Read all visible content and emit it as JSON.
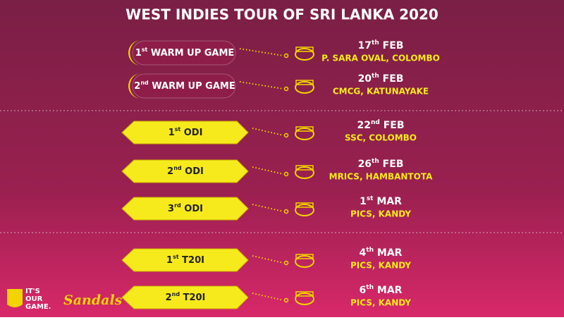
{
  "header": {
    "title": "WEST INDIES TOUR OF SRI LANKA 2020"
  },
  "sections": [
    {
      "matches": [
        {
          "label": {
            "num": "1",
            "sup": "st",
            "rest": " WARM UP GAME"
          },
          "date": {
            "day": "17",
            "sup": "th",
            "month": " FEB"
          },
          "venue": "P. SARA OVAL, COLOMBO"
        },
        {
          "label": {
            "num": "2",
            "sup": "nd",
            "rest": " WARM UP GAME"
          },
          "date": {
            "day": "20",
            "sup": "th",
            "month": " FEB"
          },
          "venue": "CMCG, KATUNAYAKE"
        }
      ]
    },
    {
      "matches": [
        {
          "label": {
            "num": "1",
            "sup": "st",
            "rest": " ODI"
          },
          "date": {
            "day": "22",
            "sup": "nd",
            "month": " FEB"
          },
          "venue": "SSC, COLOMBO"
        },
        {
          "label": {
            "num": "2",
            "sup": "nd",
            "rest": " ODI"
          },
          "date": {
            "day": "26",
            "sup": "th",
            "month": " FEB"
          },
          "venue": "MRICS, HAMBANTOTA"
        },
        {
          "label": {
            "num": "3",
            "sup": "rd",
            "rest": " ODI"
          },
          "date": {
            "day": "1",
            "sup": "st",
            "month": " MAR"
          },
          "venue": "PICS, KANDY"
        }
      ]
    },
    {
      "matches": [
        {
          "label": {
            "num": "1",
            "sup": "st",
            "rest": " T20I"
          },
          "date": {
            "day": "4",
            "sup": "th",
            "month": " MAR"
          },
          "venue": "PICS, KANDY"
        },
        {
          "label": {
            "num": "2",
            "sup": "nd",
            "rest": " T20I"
          },
          "date": {
            "day": "6",
            "sup": "th",
            "month": " MAR"
          },
          "venue": "PICS, KANDY"
        }
      ]
    }
  ],
  "footer": {
    "logo_lines": [
      "IT'S",
      "OUR",
      "GAME."
    ],
    "sponsor": "Sandals"
  }
}
